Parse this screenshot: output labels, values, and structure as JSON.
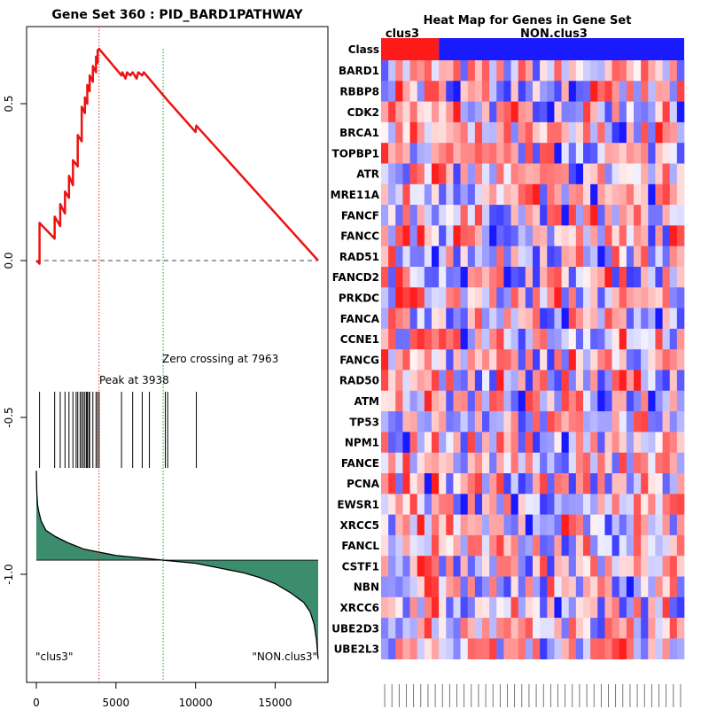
{
  "chart_data": [
    {
      "type": "line",
      "title": "Gene Set  360 : PID_BARD1PATHWAY",
      "xlim": [
        0,
        17700
      ],
      "ylim": [
        -1.35,
        0.75
      ],
      "xticks": [
        0,
        5000,
        10000,
        15000
      ],
      "xtick_labels": [
        "0",
        "5000",
        "10000",
        "15000"
      ],
      "yticks": [
        0.5,
        0.0,
        -0.5,
        -1.0
      ],
      "ytick_labels": [
        "0.5",
        "0.0",
        "-0.5",
        "-1.0"
      ],
      "peak_label": "Peak at 3938",
      "peak_x": 3938,
      "zero_crossing_label": "Zero crossing at 7963",
      "zero_crossing_x": 7963,
      "left_label": "\"clus3\"",
      "right_label": "\"NON.clus3\"",
      "running_es": {
        "x": [
          0,
          200,
          200,
          1150,
          1150,
          1500,
          1500,
          1800,
          1800,
          2050,
          2050,
          2300,
          2300,
          2600,
          2600,
          2850,
          2850,
          3050,
          3050,
          3200,
          3200,
          3350,
          3350,
          3550,
          3550,
          3750,
          3750,
          3850,
          3850,
          3938,
          5350,
          5400,
          5600,
          5700,
          5900,
          6050,
          6300,
          6400,
          6650,
          6750,
          8250,
          10000,
          10050,
          17700
        ],
        "y": [
          0.0,
          -0.01,
          0.12,
          0.07,
          0.14,
          0.11,
          0.18,
          0.15,
          0.22,
          0.2,
          0.27,
          0.24,
          0.32,
          0.3,
          0.4,
          0.38,
          0.49,
          0.47,
          0.52,
          0.5,
          0.56,
          0.54,
          0.59,
          0.57,
          0.62,
          0.6,
          0.65,
          0.63,
          0.67,
          0.675,
          0.59,
          0.6,
          0.58,
          0.6,
          0.59,
          0.6,
          0.58,
          0.6,
          0.59,
          0.6,
          0.51,
          0.41,
          0.43,
          0.0
        ]
      },
      "hit_positions": [
        200,
        1150,
        1500,
        1800,
        2050,
        2300,
        2500,
        2600,
        2750,
        2850,
        2950,
        3050,
        3150,
        3200,
        3300,
        3350,
        3550,
        3750,
        3850,
        3950,
        5350,
        6050,
        6650,
        7100,
        8100,
        8250,
        10050
      ],
      "ranked_metric": {
        "x": [
          0,
          30,
          80,
          150,
          300,
          600,
          1200,
          2000,
          3000,
          4000,
          5000,
          6000,
          7000,
          7963,
          9000,
          10000,
          11000,
          12000,
          13000,
          14000,
          15000,
          16000,
          16800,
          17200,
          17450,
          17600,
          17680,
          17700
        ],
        "y": [
          -0.67,
          -0.74,
          -0.78,
          -0.8,
          -0.83,
          -0.86,
          -0.88,
          -0.9,
          -0.92,
          -0.93,
          -0.94,
          -0.945,
          -0.95,
          -0.955,
          -0.96,
          -0.965,
          -0.975,
          -0.985,
          -0.995,
          -1.01,
          -1.03,
          -1.06,
          -1.09,
          -1.12,
          -1.16,
          -1.21,
          -1.26,
          -1.27
        ]
      },
      "metric_baseline": -0.955
    },
    {
      "type": "heatmap",
      "title": "Heat Map for Genes in Gene Set",
      "class_row_label": "Class",
      "class_names": [
        "clus3",
        "NON.clus3"
      ],
      "class_colors": [
        "#ff1a1a",
        "#1a1aff"
      ],
      "n_clus3": 8,
      "n_non": 34,
      "genes": [
        "BARD1",
        "RBBP8",
        "CDK2",
        "BRCA1",
        "TOPBP1",
        "ATR",
        "MRE11A",
        "FANCF",
        "FANCC",
        "RAD51",
        "FANCD2",
        "PRKDC",
        "FANCA",
        "CCNE1",
        "FANCG",
        "RAD50",
        "ATM",
        "TP53",
        "NPM1",
        "FANCE",
        "PCNA",
        "EWSR1",
        "XRCC5",
        "FANCL",
        "CSTF1",
        "NBN",
        "XRCC6",
        "UBE2D3",
        "UBE2L3"
      ]
    }
  ]
}
